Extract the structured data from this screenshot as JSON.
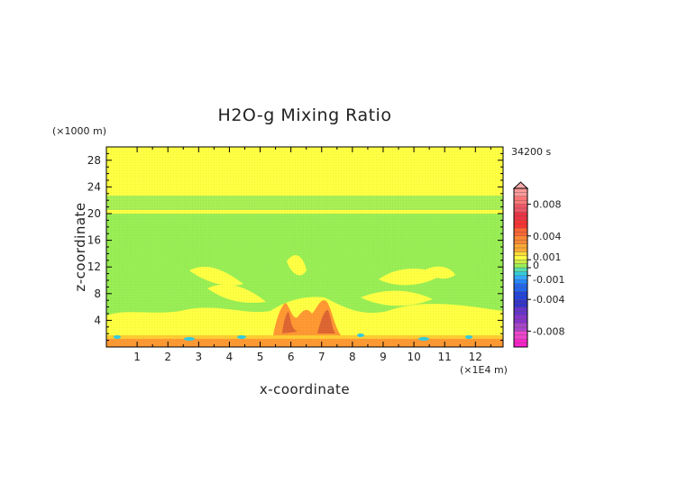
{
  "chart_data": {
    "type": "heatmap",
    "title": "H2O-g Mixing Ratio",
    "xlabel": "x-coordinate",
    "ylabel": "z-coordinate",
    "x_unit": "(×1E4 m)",
    "y_unit": "(×1000 m)",
    "time_label": "34200 s",
    "x_ticks": [
      "1",
      "2",
      "3",
      "4",
      "5",
      "6",
      "7",
      "8",
      "9",
      "10",
      "11",
      "12"
    ],
    "y_ticks": [
      "4",
      "8",
      "12",
      "16",
      "20",
      "24",
      "28"
    ],
    "xlim": [
      0,
      12.9
    ],
    "ylim": [
      0,
      30
    ],
    "colorbar": {
      "labels": [
        "0.008",
        "0.004",
        "0.001",
        "0",
        "-0.001",
        "-0.004",
        "-0.008"
      ],
      "label_values": [
        0.008,
        0.004,
        0.001,
        0,
        -0.001,
        -0.004,
        -0.008
      ],
      "range": [
        -0.01,
        0.01
      ],
      "extend": "max"
    },
    "colors": {
      "background_positive": "#ffff44",
      "near_zero": "#99ee55",
      "moist_orange": "#ff9933",
      "moist_red": "#dd6633",
      "dry_cyan": "#33ccdd",
      "max_pink": "#ffaaaa"
    }
  }
}
